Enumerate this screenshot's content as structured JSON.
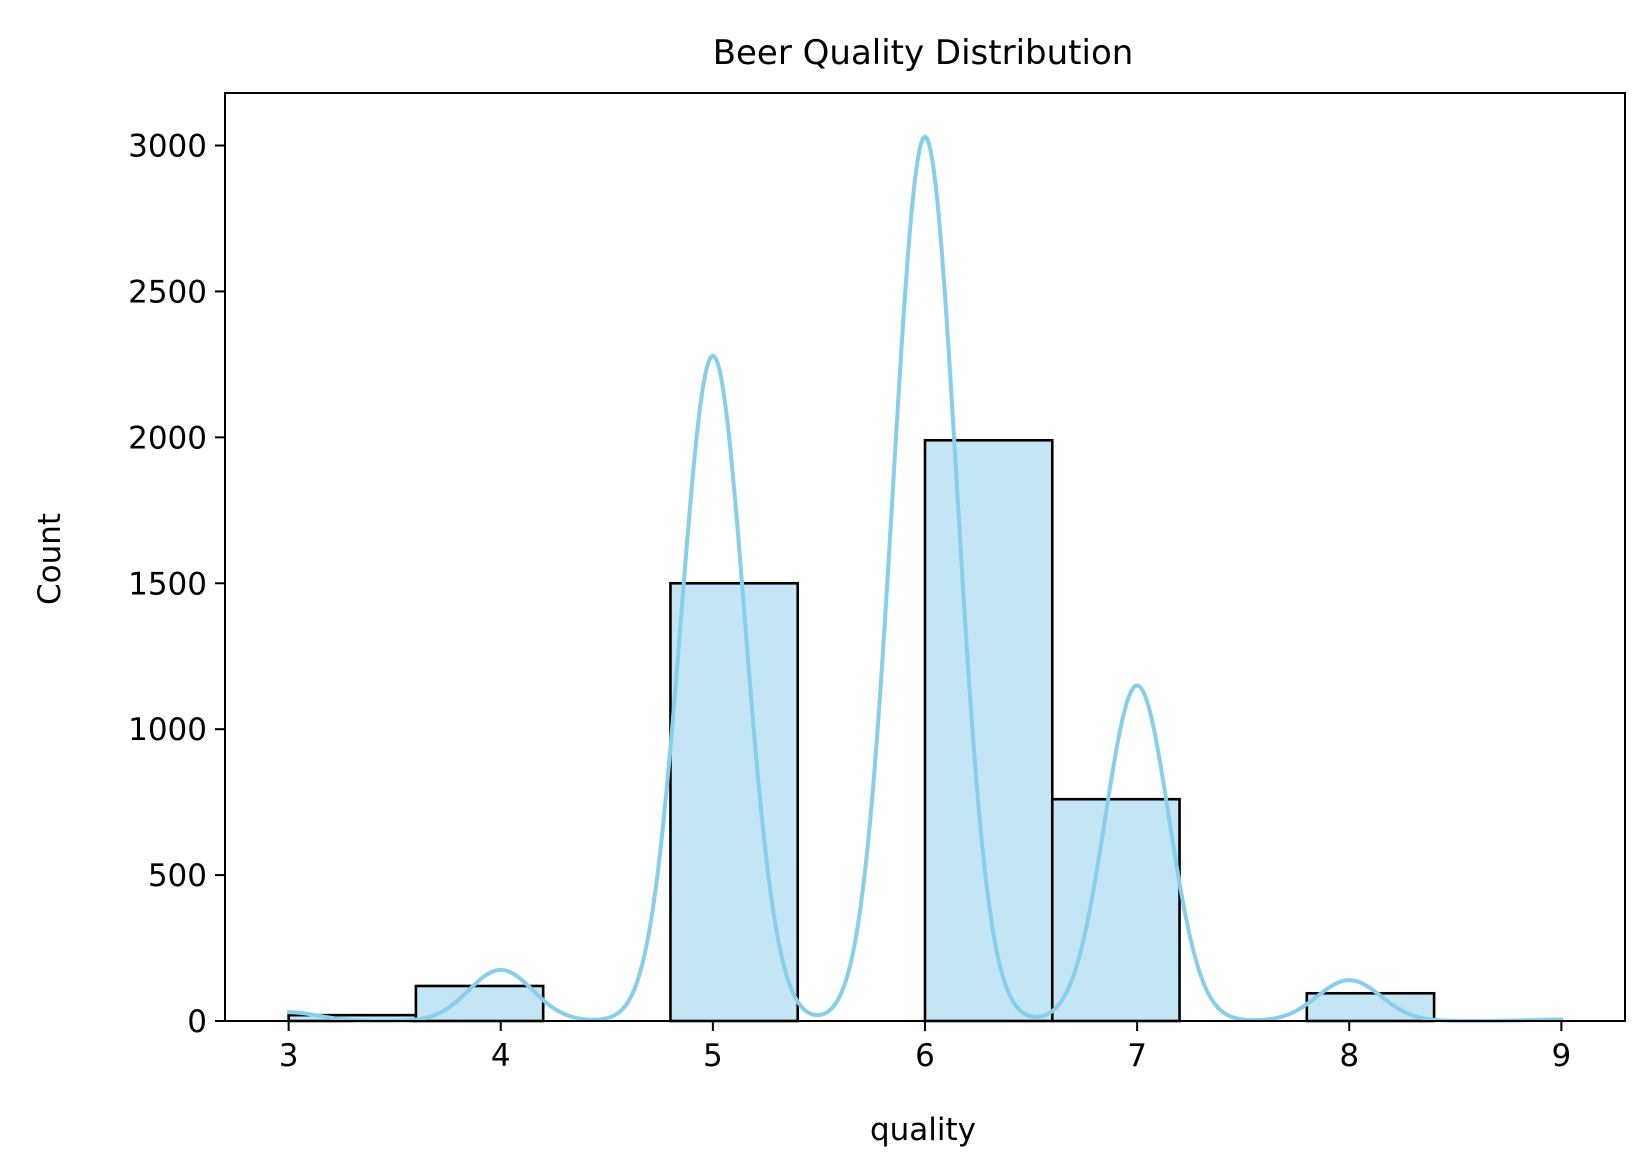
{
  "chart_data": {
    "type": "bar",
    "title": "Beer Quality Distribution",
    "xlabel": "quality",
    "ylabel": "Count",
    "xlim": [
      2.7,
      9.3
    ],
    "ylim": [
      0,
      3180
    ],
    "xticks": [
      "3",
      "4",
      "5",
      "6",
      "7",
      "8",
      "9"
    ],
    "yticks": [
      "0",
      "500",
      "1000",
      "1500",
      "2000",
      "2500",
      "3000"
    ],
    "bins": [
      {
        "x0": 3.0,
        "x1": 3.6,
        "value": 20
      },
      {
        "x0": 3.6,
        "x1": 4.2,
        "value": 120
      },
      {
        "x0": 4.2,
        "x1": 4.8,
        "value": 0
      },
      {
        "x0": 4.8,
        "x1": 5.4,
        "value": 1500
      },
      {
        "x0": 5.4,
        "x1": 6.0,
        "value": 0
      },
      {
        "x0": 6.0,
        "x1": 6.6,
        "value": 1990
      },
      {
        "x0": 6.6,
        "x1": 7.2,
        "value": 760
      },
      {
        "x0": 7.2,
        "x1": 7.8,
        "value": 0
      },
      {
        "x0": 7.8,
        "x1": 8.4,
        "value": 95
      },
      {
        "x0": 8.4,
        "x1": 9.0,
        "value": 0
      }
    ],
    "kde": {
      "peaks": [
        {
          "x": 3.0,
          "y": 30,
          "sigma": 0.14
        },
        {
          "x": 4.0,
          "y": 175,
          "sigma": 0.15
        },
        {
          "x": 5.0,
          "y": 2280,
          "sigma": 0.15
        },
        {
          "x": 6.0,
          "y": 3030,
          "sigma": 0.15
        },
        {
          "x": 7.0,
          "y": 1150,
          "sigma": 0.15
        },
        {
          "x": 8.0,
          "y": 140,
          "sigma": 0.15
        },
        {
          "x": 9.0,
          "y": 5,
          "sigma": 0.15
        }
      ]
    },
    "colors": {
      "bar_fill": "#c3e5f4",
      "bar_edge": "#000000",
      "kde_line": "#87ceeb"
    },
    "grid": false,
    "legend": "none"
  }
}
